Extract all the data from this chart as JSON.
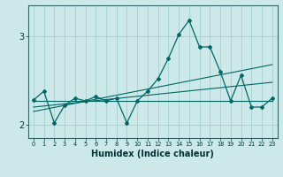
{
  "xlabel": "Humidex (Indice chaleur)",
  "ylabel": "",
  "bg_color": "#cce8e8",
  "grid_color": "#99cccc",
  "line_color": "#006666",
  "x": [
    0,
    1,
    2,
    3,
    4,
    5,
    6,
    7,
    8,
    9,
    10,
    11,
    12,
    13,
    14,
    15,
    16,
    17,
    18,
    19,
    20,
    21,
    22,
    23
  ],
  "line1": [
    2.28,
    2.38,
    2.02,
    2.22,
    2.3,
    2.27,
    2.32,
    2.27,
    2.3,
    2.02,
    2.27,
    2.38,
    2.52,
    2.75,
    3.02,
    3.18,
    2.88,
    2.88,
    2.6,
    2.27,
    2.56,
    2.2,
    2.2,
    2.3
  ],
  "line2": [
    [
      0,
      2.27
    ],
    [
      23,
      2.27
    ]
  ],
  "line3": [
    [
      0,
      2.2
    ],
    [
      23,
      2.48
    ]
  ],
  "line4": [
    [
      0,
      2.15
    ],
    [
      23,
      2.68
    ]
  ],
  "ylim": [
    1.85,
    3.35
  ],
  "yticks": [
    2,
    3
  ],
  "xticks": [
    0,
    1,
    2,
    3,
    4,
    5,
    6,
    7,
    8,
    9,
    10,
    11,
    12,
    13,
    14,
    15,
    16,
    17,
    18,
    19,
    20,
    21,
    22,
    23
  ]
}
